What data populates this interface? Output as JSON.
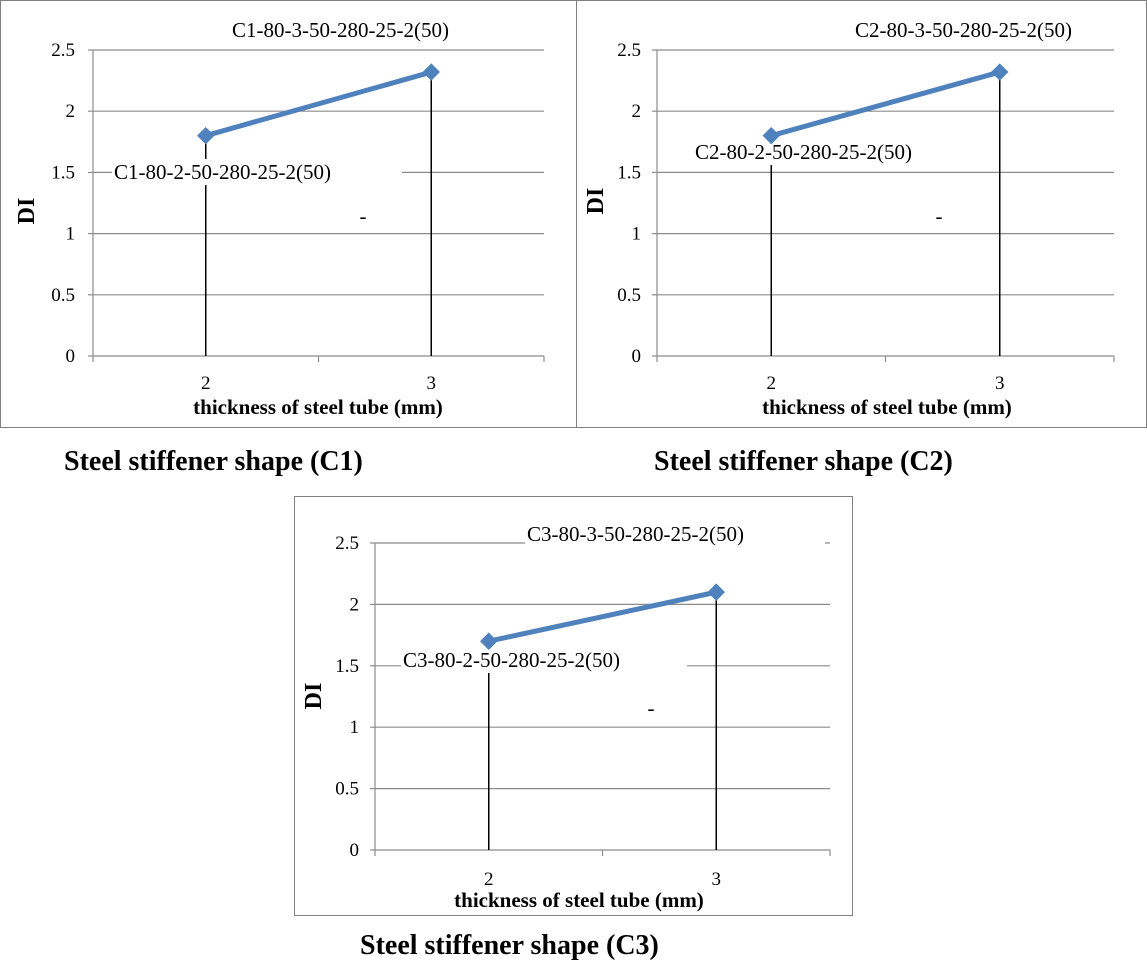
{
  "charts": [
    {
      "caption": "Steel stiffener shape (C1)",
      "chart_data": {
        "type": "line",
        "x": [
          2,
          3
        ],
        "series": [
          {
            "values": [
              1.8,
              2.32
            ],
            "color": "#4f81bd"
          }
        ],
        "xlabel": "thickness of steel tube (mm)",
        "ylabel": "DI",
        "xticks": [
          "2",
          "3"
        ],
        "yticks": [
          "0",
          "0.5",
          "1",
          "1.5",
          "2",
          "2.5"
        ],
        "ylim": [
          0,
          2.5
        ],
        "grid": true,
        "point_labels": [
          "C1-80-2-50-280-25-2(50)",
          "C1-80-3-50-280-25-2(50)"
        ],
        "annotation": "-"
      }
    },
    {
      "caption": "Steel stiffener shape (C2)",
      "chart_data": {
        "type": "line",
        "x": [
          2,
          3
        ],
        "series": [
          {
            "values": [
              1.8,
              2.32
            ],
            "color": "#4f81bd"
          }
        ],
        "xlabel": "thickness of steel tube (mm)",
        "ylabel": "DI",
        "xticks": [
          "2",
          "3"
        ],
        "yticks": [
          "0",
          "0.5",
          "1",
          "1.5",
          "2",
          "2.5"
        ],
        "ylim": [
          0,
          2.5
        ],
        "grid": true,
        "point_labels": [
          "C2-80-2-50-280-25-2(50)",
          "C2-80-3-50-280-25-2(50)"
        ],
        "annotation": "-"
      }
    },
    {
      "caption": "Steel stiffener shape (C3)",
      "chart_data": {
        "type": "line",
        "x": [
          2,
          3
        ],
        "series": [
          {
            "values": [
              1.7,
              2.1
            ],
            "color": "#4f81bd"
          }
        ],
        "xlabel": "thickness of steel tube (mm)",
        "ylabel": "DI",
        "xticks": [
          "2",
          "3"
        ],
        "yticks": [
          "0",
          "0.5",
          "1",
          "1.5",
          "2",
          "2.5"
        ],
        "ylim": [
          0,
          2.5
        ],
        "grid": true,
        "point_labels": [
          "C3-80-2-50-280-25-2(50)",
          "C3-80-3-50-280-25-2(50)"
        ],
        "annotation": "-"
      }
    }
  ]
}
